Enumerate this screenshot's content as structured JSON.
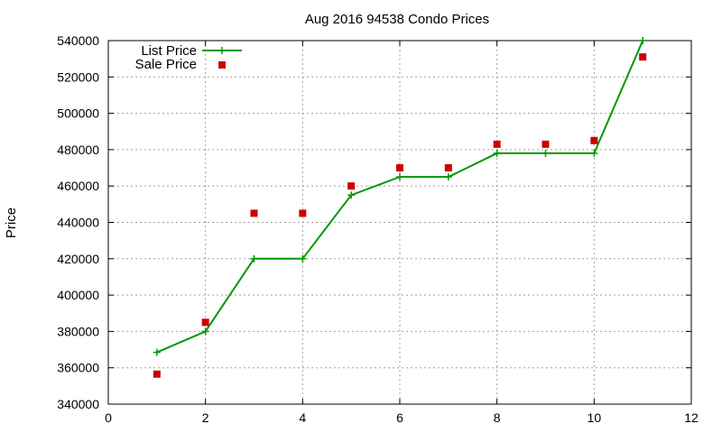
{
  "chart_data": {
    "type": "line",
    "title": "Aug 2016 94538 Condo Prices",
    "xlabel": "",
    "ylabel": "Price",
    "xlim": [
      0,
      12
    ],
    "ylim": [
      340000,
      540000
    ],
    "xticks": [
      0,
      2,
      4,
      6,
      8,
      10,
      12
    ],
    "yticks": [
      340000,
      360000,
      380000,
      400000,
      420000,
      440000,
      460000,
      480000,
      500000,
      520000,
      540000
    ],
    "grid": true,
    "legend_position": "top-left",
    "series": [
      {
        "name": "List Price",
        "style": "line-with-plus",
        "color": "#009900",
        "x": [
          1,
          2,
          3,
          4,
          5,
          6,
          7,
          8,
          9,
          10,
          11
        ],
        "y": [
          368500,
          380000,
          420000,
          420000,
          455000,
          465000,
          465000,
          478000,
          478000,
          478000,
          540000
        ]
      },
      {
        "name": "Sale Price",
        "style": "square-points",
        "color": "#cc0000",
        "x": [
          1,
          2,
          3,
          4,
          5,
          6,
          7,
          8,
          9,
          10,
          11
        ],
        "y": [
          356500,
          385000,
          445000,
          445000,
          460000,
          470000,
          470000,
          483000,
          483000,
          485000,
          531000
        ]
      }
    ]
  }
}
